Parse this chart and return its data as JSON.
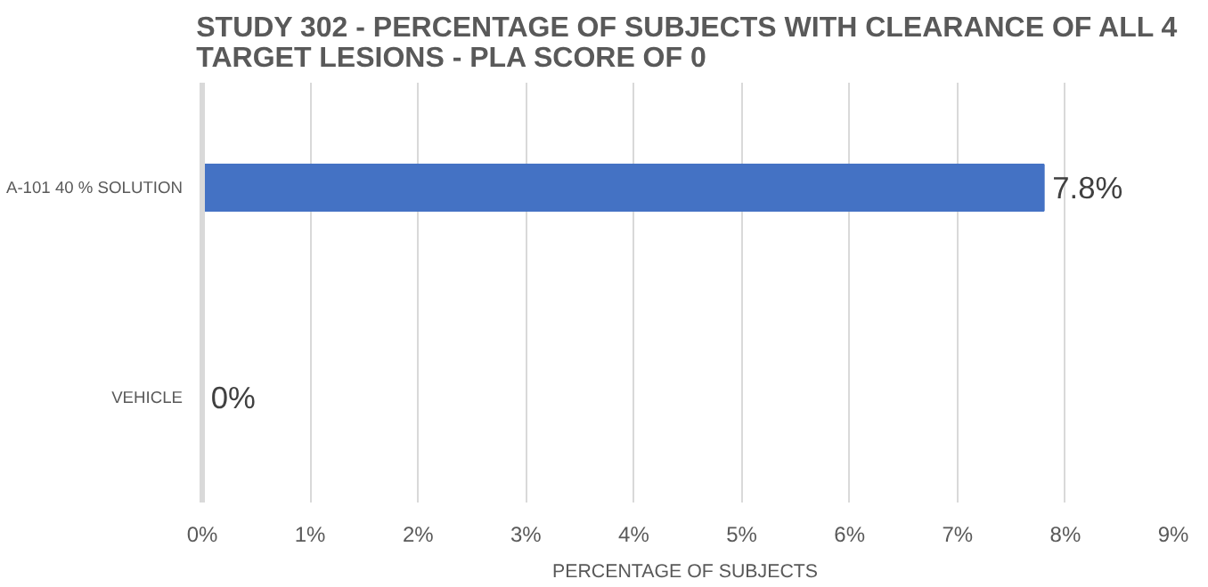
{
  "chart_data": {
    "type": "bar",
    "orientation": "horizontal",
    "title": "STUDY 302 - PERCENTAGE OF SUBJECTS WITH CLEARANCE OF ALL 4 TARGET LESIONS - PLA SCORE OF 0",
    "xlabel": "PERCENTAGE  OF SUBJECTS",
    "categories": [
      "A-101 40 % SOLUTION",
      "VEHICLE"
    ],
    "values": [
      7.8,
      0
    ],
    "value_labels": [
      "7.8%",
      "0%"
    ],
    "color": "#4472c4",
    "xlim": [
      0,
      9
    ],
    "xticks": [
      {
        "value": 0,
        "label": "0%"
      },
      {
        "value": 1,
        "label": "1%"
      },
      {
        "value": 2,
        "label": "2%"
      },
      {
        "value": 3,
        "label": "3%"
      },
      {
        "value": 4,
        "label": "4%"
      },
      {
        "value": 5,
        "label": "5%"
      },
      {
        "value": 6,
        "label": "6%"
      },
      {
        "value": 7,
        "label": "7%"
      },
      {
        "value": 8,
        "label": "8%"
      },
      {
        "value": 9,
        "label": "9%"
      }
    ],
    "grid": "x"
  }
}
